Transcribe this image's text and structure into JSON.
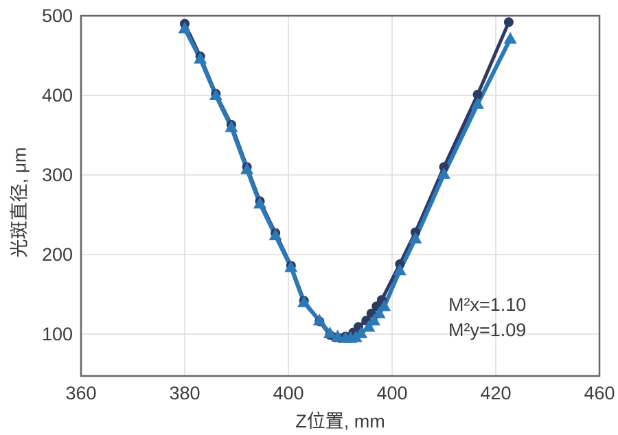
{
  "chart_data": {
    "type": "line",
    "title": "",
    "xlabel": "Z位置, mm",
    "ylabel": "光斑直径, μm",
    "x_tick_labels": [
      "360",
      "380",
      "400",
      "400",
      "420",
      "460"
    ],
    "y_tick_labels": [
      "100",
      "200",
      "300",
      "400",
      "500"
    ],
    "xlim": [
      360,
      460
    ],
    "ylim": [
      47.4,
      500
    ],
    "grid": true,
    "legend_position": "none",
    "annotation": {
      "lines": [
        "M²x=1.10",
        "M²y=1.09"
      ]
    },
    "series": [
      {
        "name": "M²x",
        "marker": "circle",
        "color": "#2c3a64",
        "line_width": 5,
        "points": [
          [
            380,
            490
          ],
          [
            383,
            449
          ],
          [
            386,
            402
          ],
          [
            389,
            363
          ],
          [
            392,
            310
          ],
          [
            394.5,
            267
          ],
          [
            397.5,
            227
          ],
          [
            400.5,
            186
          ],
          [
            403,
            142
          ],
          [
            406,
            116
          ],
          [
            408,
            99
          ],
          [
            409,
            96
          ],
          [
            410,
            95
          ],
          [
            411,
            97
          ],
          [
            412.5,
            102
          ],
          [
            413.5,
            109
          ],
          [
            415,
            117
          ],
          [
            416,
            126
          ],
          [
            417,
            135
          ],
          [
            418,
            143
          ],
          [
            421.5,
            188
          ],
          [
            424.5,
            228
          ],
          [
            430,
            310
          ],
          [
            436.5,
            401
          ],
          [
            442.5,
            492
          ]
        ]
      },
      {
        "name": "M²y",
        "marker": "triangle",
        "color": "#2c79b8",
        "line_width": 6,
        "points": [
          [
            380,
            484
          ],
          [
            383,
            446
          ],
          [
            386,
            400
          ],
          [
            389,
            360
          ],
          [
            392,
            307
          ],
          [
            394.5,
            264
          ],
          [
            397.5,
            224
          ],
          [
            400.5,
            184
          ],
          [
            403,
            140
          ],
          [
            406,
            117
          ],
          [
            408,
            101
          ],
          [
            409.5,
            97
          ],
          [
            411,
            95
          ],
          [
            412,
            95
          ],
          [
            413,
            96
          ],
          [
            414,
            101
          ],
          [
            415.5,
            109
          ],
          [
            416.5,
            117
          ],
          [
            417.5,
            126
          ],
          [
            418.5,
            135
          ],
          [
            421.5,
            180
          ],
          [
            424.5,
            220
          ],
          [
            430,
            301
          ],
          [
            436.5,
            389
          ],
          [
            442.8,
            471
          ]
        ]
      }
    ],
    "colors": {
      "grid": "#dcdcdc",
      "border": "#666666",
      "text": "#3d3d3d",
      "background": "#ffffff"
    }
  }
}
